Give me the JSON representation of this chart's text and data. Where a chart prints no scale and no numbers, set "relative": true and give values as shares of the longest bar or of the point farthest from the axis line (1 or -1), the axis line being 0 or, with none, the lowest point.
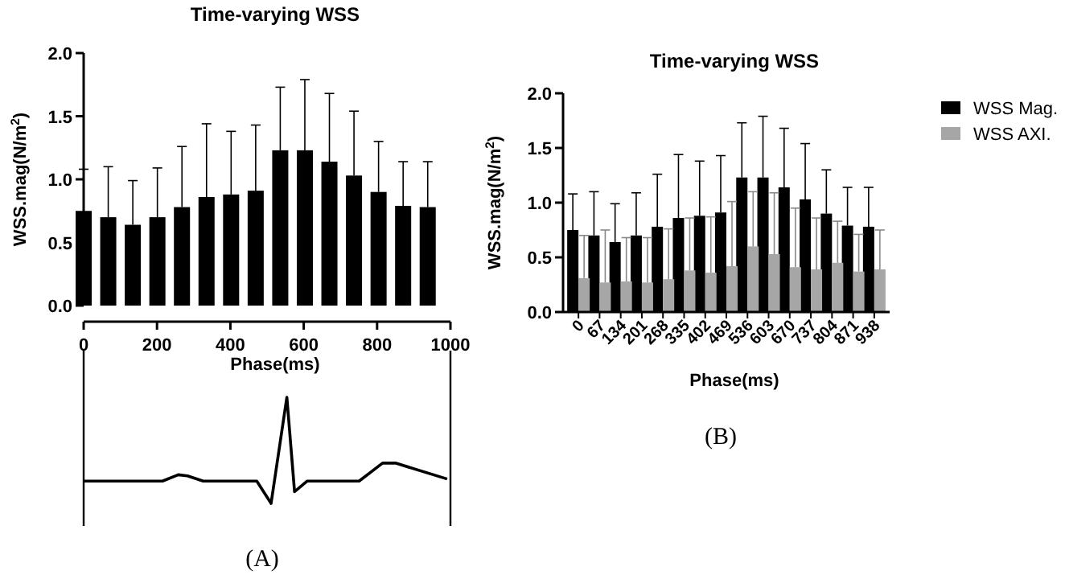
{
  "chart_data": [
    {
      "type": "bar",
      "title": "Time-varying WSS",
      "xlabel": "Phase(ms)",
      "ylabel": "WSS.mag(N/m$^{2}$)",
      "x": [
        0,
        67,
        134,
        201,
        268,
        335,
        402,
        469,
        536,
        603,
        670,
        737,
        804,
        871,
        938
      ],
      "values": [
        0.75,
        0.7,
        0.64,
        0.7,
        0.78,
        0.86,
        0.88,
        0.91,
        1.23,
        1.23,
        1.14,
        1.03,
        0.9,
        0.79,
        0.78
      ],
      "errors": [
        [
          0.75,
          1.08
        ],
        [
          0.7,
          1.1
        ],
        [
          0.64,
          0.99
        ],
        [
          0.7,
          1.09
        ],
        [
          0.78,
          1.26
        ],
        [
          0.86,
          1.44
        ],
        [
          0.88,
          1.38
        ],
        [
          0.91,
          1.43
        ],
        [
          1.23,
          1.73
        ],
        [
          1.23,
          1.79
        ],
        [
          1.14,
          1.68
        ],
        [
          1.03,
          1.54
        ],
        [
          0.9,
          1.3
        ],
        [
          0.79,
          1.14
        ],
        [
          0.78,
          1.14
        ]
      ],
      "color": "#000000",
      "xlim": [
        0,
        1000
      ],
      "xticks": [
        0,
        200,
        400,
        600,
        800,
        1000
      ],
      "ylim": [
        0,
        2.0
      ],
      "yticks": [
        {
          "value": 0,
          "label": "0.0"
        },
        {
          "value": 0.5,
          "label": "0.5"
        },
        {
          "value": 1,
          "label": "1.0"
        },
        {
          "value": 1.5,
          "label": "1.5"
        },
        {
          "value": 2,
          "label": "2.0"
        }
      ],
      "grid": false,
      "legend": false
    },
    {
      "type": "line",
      "relative": true,
      "x": [
        0,
        215,
        258,
        283,
        326,
        472,
        511,
        554,
        575,
        609,
        751,
        815,
        850,
        991
      ],
      "values": [
        0.21,
        0.21,
        0.27,
        0.26,
        0.21,
        0.21,
        0,
        1,
        0.11,
        0.21,
        0.21,
        0.38,
        0.38,
        0.23
      ],
      "color": "#000000",
      "xlim": [
        0,
        1000
      ],
      "marker": "none",
      "line_style": "solid",
      "annotations": [
        "(A)"
      ]
    },
    {
      "type": "bar",
      "title": "Time-varying WSS",
      "xlabel": "Phase(ms)",
      "ylabel": "WSS.mag(N/m$^{2}$)",
      "categories": [
        "0",
        "67",
        "134",
        "201",
        "268",
        "335",
        "402",
        "469",
        "536",
        "603",
        "670",
        "737",
        "804",
        "871",
        "938"
      ],
      "series": [
        {
          "name": "WSS Mag.",
          "color": "#000000",
          "values": [
            0.75,
            0.7,
            0.64,
            0.7,
            0.78,
            0.86,
            0.88,
            0.91,
            1.23,
            1.23,
            1.14,
            1.03,
            0.9,
            0.79,
            0.78
          ],
          "errors": [
            [
              0.75,
              1.08
            ],
            [
              0.7,
              1.1
            ],
            [
              0.64,
              0.99
            ],
            [
              0.7,
              1.09
            ],
            [
              0.78,
              1.26
            ],
            [
              0.86,
              1.44
            ],
            [
              0.88,
              1.38
            ],
            [
              0.91,
              1.43
            ],
            [
              1.23,
              1.73
            ],
            [
              1.23,
              1.79
            ],
            [
              1.14,
              1.68
            ],
            [
              1.03,
              1.54
            ],
            [
              0.9,
              1.3
            ],
            [
              0.79,
              1.14
            ],
            [
              0.78,
              1.14
            ]
          ]
        },
        {
          "name": "WSS AXI.",
          "color": "#a6a6a6",
          "values": [
            0.31,
            0.27,
            0.28,
            0.27,
            0.3,
            0.38,
            0.36,
            0.42,
            0.6,
            0.53,
            0.41,
            0.39,
            0.45,
            0.37,
            0.39
          ],
          "errors": [
            [
              0.31,
              0.7
            ],
            [
              0.27,
              0.75
            ],
            [
              0.28,
              0.68
            ],
            [
              0.27,
              0.68
            ],
            [
              0.3,
              0.76
            ],
            [
              0.38,
              0.86
            ],
            [
              0.36,
              0.87
            ],
            [
              0.42,
              1.01
            ],
            [
              0.6,
              1.1
            ],
            [
              0.53,
              1.09
            ],
            [
              0.41,
              0.95
            ],
            [
              0.39,
              0.86
            ],
            [
              0.45,
              0.83
            ],
            [
              0.37,
              0.71
            ],
            [
              0.39,
              0.75
            ]
          ]
        }
      ],
      "ylim": [
        0,
        2.0
      ],
      "yticks": [
        {
          "value": 0,
          "label": "0.0"
        },
        {
          "value": 0.5,
          "label": "0.5"
        },
        {
          "value": 1,
          "label": "1.0"
        },
        {
          "value": 1.5,
          "label": "1.5"
        },
        {
          "value": 2,
          "label": "2.0"
        }
      ],
      "grid": false,
      "legend": "right",
      "annotations": [
        "(B)"
      ]
    }
  ]
}
